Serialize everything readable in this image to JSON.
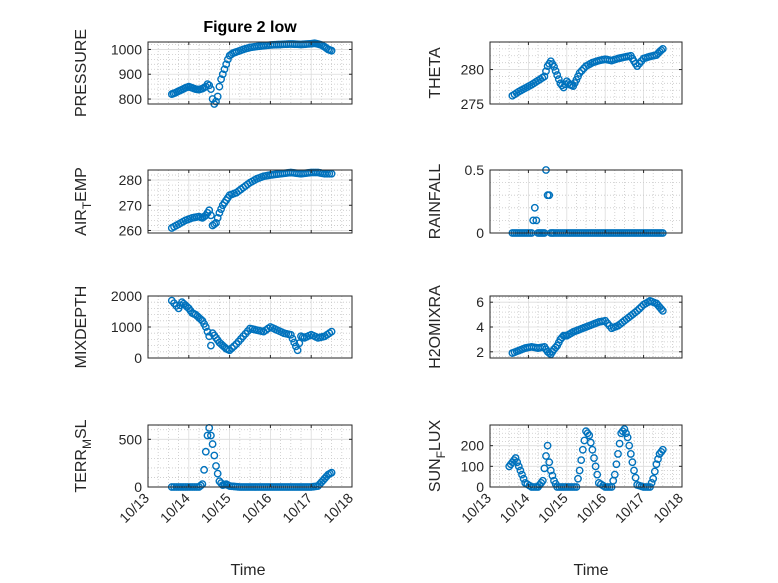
{
  "chart_data": [
    {
      "type": "scatter",
      "title": "Figure 2 low",
      "ylabel": "PRESSURE",
      "xlabel": "",
      "xlim": [
        "10/13",
        "10/18"
      ],
      "ylim": [
        780,
        1030
      ],
      "yticks": [
        800,
        900,
        1000
      ],
      "xticklabels": [],
      "grid": "on",
      "series": [
        {
          "x": [
            "10/13 14:00",
            "10/13 16:00",
            "10/13 18:00",
            "10/13 20:00",
            "10/13 22:00",
            "10/14 00:00",
            "10/14 02:00",
            "10/14 04:00",
            "10/14 06:00",
            "10/14 08:00",
            "10/14 10:00",
            "10/14 11:00",
            "10/14 12:00",
            "10/14 13:00",
            "10/14 14:00",
            "10/14 15:00",
            "10/14 16:00",
            "10/14 17:00",
            "10/14 18:00",
            "10/14 19:00",
            "10/14 20:00",
            "10/14 21:00",
            "10/14 22:00",
            "10/14 23:00",
            "10/15 00:00",
            "10/15 02:00",
            "10/15 04:00",
            "10/15 08:00",
            "10/15 12:00",
            "10/15 16:00",
            "10/15 20:00",
            "10/16 00:00",
            "10/16 06:00",
            "10/16 12:00",
            "10/16 18:00",
            "10/17 00:00",
            "10/17 02:00",
            "10/17 04:00",
            "10/17 06:00",
            "10/17 08:00",
            "10/17 10:00",
            "10/17 12:00"
          ],
          "values": [
            820,
            825,
            832,
            838,
            845,
            850,
            845,
            840,
            838,
            842,
            850,
            860,
            855,
            840,
            800,
            780,
            790,
            810,
            850,
            880,
            900,
            920,
            940,
            960,
            975,
            985,
            990,
            1000,
            1008,
            1012,
            1015,
            1018,
            1020,
            1022,
            1020,
            1023,
            1025,
            1022,
            1018,
            1010,
            1000,
            995
          ]
        }
      ]
    },
    {
      "type": "scatter",
      "title": "",
      "ylabel": "THETA",
      "xlabel": "",
      "xlim": [
        "10/13",
        "10/18"
      ],
      "ylim": [
        275,
        284
      ],
      "yticks": [
        275,
        280
      ],
      "xticklabels": [],
      "grid": "on",
      "series": [
        {
          "x": [
            "10/13 14:00",
            "10/13 18:00",
            "10/13 22:00",
            "10/14 02:00",
            "10/14 06:00",
            "10/14 10:00",
            "10/14 12:00",
            "10/14 14:00",
            "10/14 16:00",
            "10/14 18:00",
            "10/14 20:00",
            "10/14 22:00",
            "10/15 00:00",
            "10/15 02:00",
            "10/15 04:00",
            "10/15 06:00",
            "10/15 08:00",
            "10/15 12:00",
            "10/15 16:00",
            "10/15 20:00",
            "10/16 00:00",
            "10/16 04:00",
            "10/16 08:00",
            "10/16 12:00",
            "10/16 16:00",
            "10/16 18:00",
            "10/16 20:00",
            "10/17 00:00",
            "10/17 04:00",
            "10/17 08:00",
            "10/17 10:00",
            "10/17 12:00"
          ],
          "values": [
            276.2,
            276.8,
            277.3,
            277.8,
            278.4,
            279.0,
            280.5,
            281.2,
            280.4,
            279.2,
            278.0,
            277.4,
            278.3,
            277.8,
            277.6,
            278.5,
            279.5,
            280.5,
            281.0,
            281.3,
            281.5,
            281.3,
            281.6,
            281.8,
            282.0,
            281.2,
            280.5,
            281.6,
            281.9,
            282.1,
            282.6,
            283.0
          ]
        }
      ]
    },
    {
      "type": "scatter",
      "title": "",
      "ylabel": "AIR_TEMP",
      "xlabel": "",
      "xlim": [
        "10/13",
        "10/18"
      ],
      "ylim": [
        259,
        284
      ],
      "yticks": [
        260,
        270,
        280
      ],
      "xticklabels": [],
      "grid": "on",
      "series": [
        {
          "x": [
            "10/13 14:00",
            "10/13 18:00",
            "10/13 22:00",
            "10/14 02:00",
            "10/14 06:00",
            "10/14 08:00",
            "10/14 10:00",
            "10/14 12:00",
            "10/14 13:00",
            "10/14 14:00",
            "10/14 16:00",
            "10/14 18:00",
            "10/14 20:00",
            "10/14 22:00",
            "10/15 00:00",
            "10/15 04:00",
            "10/15 08:00",
            "10/15 12:00",
            "10/15 16:00",
            "10/15 20:00",
            "10/16 00:00",
            "10/16 06:00",
            "10/16 12:00",
            "10/16 18:00",
            "10/17 00:00",
            "10/17 04:00",
            "10/17 08:00",
            "10/17 12:00"
          ],
          "values": [
            261,
            262.5,
            264,
            265,
            265.5,
            265,
            266,
            268,
            266,
            262,
            263,
            267,
            270,
            272,
            274,
            275,
            277,
            279,
            280.5,
            281.5,
            282,
            282.5,
            283,
            282.5,
            283,
            283,
            282.5,
            282.5
          ]
        }
      ]
    },
    {
      "type": "scatter",
      "title": "",
      "ylabel": "RAINFALL",
      "xlabel": "",
      "xlim": [
        "10/13",
        "10/18"
      ],
      "ylim": [
        0,
        0.5
      ],
      "yticks": [
        0,
        0.5
      ],
      "xticklabels": [],
      "grid": "on",
      "series": [
        {
          "x": [
            "10/13 14:00",
            "10/13 20:00",
            "10/14 02:00",
            "10/14 04:00",
            "10/14 06:00",
            "10/14 08:00",
            "10/14 10:00",
            "10/14 11:00",
            "10/14 12:00",
            "10/14 13:00",
            "10/14 14:00",
            "10/14 16:00",
            "10/14 20:00",
            "10/15 00:00",
            "10/15 06:00",
            "10/15 12:00",
            "10/15 18:00",
            "10/16 00:00",
            "10/16 06:00",
            "10/16 12:00",
            "10/16 18:00",
            "10/17 00:00",
            "10/17 06:00",
            "10/17 12:00"
          ],
          "values": [
            0,
            0,
            0,
            0.2,
            0,
            0,
            0,
            0.5,
            0.3,
            0.3,
            0,
            0,
            0,
            0,
            0,
            0,
            0,
            0,
            0,
            0,
            0,
            0,
            0,
            0
          ]
        }
      ]
    },
    {
      "type": "scatter",
      "title": "",
      "ylabel": "MIXDEPTH",
      "xlabel": "",
      "xlim": [
        "10/13",
        "10/18"
      ],
      "ylim": [
        0,
        2000
      ],
      "yticks": [
        0,
        1000,
        2000
      ],
      "xticklabels": [],
      "grid": "on",
      "series": [
        {
          "x": [
            "10/13 14:00",
            "10/13 18:00",
            "10/13 20:00",
            "10/13 22:00",
            "10/14 00:00",
            "10/14 02:00",
            "10/14 04:00",
            "10/14 06:00",
            "10/14 08:00",
            "10/14 10:00",
            "10/14 12:00",
            "10/14 13:00",
            "10/14 14:00",
            "10/14 16:00",
            "10/14 18:00",
            "10/14 20:00",
            "10/14 22:00",
            "10/15 00:00",
            "10/15 04:00",
            "10/15 08:00",
            "10/15 12:00",
            "10/15 16:00",
            "10/15 20:00",
            "10/16 00:00",
            "10/16 04:00",
            "10/16 08:00",
            "10/16 12:00",
            "10/16 14:00",
            "10/16 16:00",
            "10/16 18:00",
            "10/16 20:00",
            "10/17 00:00",
            "10/17 04:00",
            "10/17 08:00",
            "10/17 12:00"
          ],
          "values": [
            1850,
            1600,
            1800,
            1700,
            1600,
            1450,
            1400,
            1300,
            1200,
            1000,
            700,
            400,
            800,
            650,
            500,
            400,
            300,
            250,
            450,
            700,
            950,
            900,
            850,
            1000,
            900,
            800,
            750,
            500,
            250,
            700,
            650,
            750,
            650,
            700,
            850
          ]
        }
      ]
    },
    {
      "type": "scatter",
      "title": "",
      "ylabel": "H2OMIXRA",
      "xlabel": "",
      "xlim": [
        "10/13",
        "10/18"
      ],
      "ylim": [
        1.5,
        6.5
      ],
      "yticks": [
        2,
        4,
        6
      ],
      "xticklabels": [],
      "grid": "on",
      "series": [
        {
          "x": [
            "10/13 14:00",
            "10/13 18:00",
            "10/13 22:00",
            "10/14 02:00",
            "10/14 06:00",
            "10/14 10:00",
            "10/14 12:00",
            "10/14 14:00",
            "10/14 16:00",
            "10/14 18:00",
            "10/14 20:00",
            "10/14 22:00",
            "10/15 00:00",
            "10/15 04:00",
            "10/15 08:00",
            "10/15 12:00",
            "10/15 16:00",
            "10/15 20:00",
            "10/16 00:00",
            "10/16 04:00",
            "10/16 08:00",
            "10/16 12:00",
            "10/16 16:00",
            "10/16 20:00",
            "10/17 00:00",
            "10/17 04:00",
            "10/17 08:00",
            "10/17 10:00",
            "10/17 12:00"
          ],
          "values": [
            1.9,
            2.1,
            2.3,
            2.4,
            2.3,
            2.4,
            2.0,
            1.8,
            2.2,
            2.5,
            3.0,
            3.3,
            3.3,
            3.6,
            3.8,
            4.0,
            4.2,
            4.4,
            4.5,
            3.9,
            4.1,
            4.5,
            4.9,
            5.3,
            5.8,
            6.1,
            5.9,
            5.6,
            5.3
          ]
        }
      ]
    },
    {
      "type": "scatter",
      "title": "",
      "ylabel": "TERR_MSL",
      "xlabel": "Time",
      "xlim": [
        "10/13",
        "10/18"
      ],
      "ylim": [
        0,
        650
      ],
      "yticks": [
        0,
        500
      ],
      "xticklabels": [
        "10/13",
        "10/14",
        "10/15",
        "10/16",
        "10/17",
        "10/18"
      ],
      "grid": "on",
      "series": [
        {
          "x": [
            "10/13 14:00",
            "10/13 18:00",
            "10/13 22:00",
            "10/14 02:00",
            "10/14 06:00",
            "10/14 08:00",
            "10/14 09:00",
            "10/14 10:00",
            "10/14 11:00",
            "10/14 12:00",
            "10/14 13:00",
            "10/14 14:00",
            "10/14 15:00",
            "10/14 16:00",
            "10/14 17:00",
            "10/14 18:00",
            "10/14 20:00",
            "10/14 22:00",
            "10/15 00:00",
            "10/15 06:00",
            "10/15 12:00",
            "10/15 18:00",
            "10/16 00:00",
            "10/16 06:00",
            "10/16 12:00",
            "10/16 18:00",
            "10/17 00:00",
            "10/17 04:00",
            "10/17 06:00",
            "10/17 08:00",
            "10/17 10:00",
            "10/17 12:00"
          ],
          "values": [
            0,
            0,
            0,
            0,
            0,
            30,
            180,
            370,
            540,
            620,
            540,
            450,
            330,
            220,
            140,
            60,
            20,
            30,
            10,
            0,
            0,
            0,
            0,
            0,
            0,
            0,
            0,
            10,
            50,
            90,
            130,
            150
          ]
        }
      ]
    },
    {
      "type": "scatter",
      "title": "",
      "ylabel": "SUN_FLUX",
      "xlabel": "Time",
      "xlim": [
        "10/13",
        "10/18"
      ],
      "ylim": [
        0,
        300
      ],
      "yticks": [
        0,
        100,
        200
      ],
      "xticklabels": [
        "10/13",
        "10/14",
        "10/15",
        "10/16",
        "10/17",
        "10/18"
      ],
      "grid": "on",
      "series": [
        {
          "x": [
            "10/13 12:00",
            "10/13 14:00",
            "10/13 16:00",
            "10/13 18:00",
            "10/13 20:00",
            "10/13 22:00",
            "10/14 02:00",
            "10/14 06:00",
            "10/14 09:00",
            "10/14 11:00",
            "10/14 12:00",
            "10/14 13:00",
            "10/14 14:00",
            "10/14 16:00",
            "10/14 18:00",
            "10/14 22:00",
            "10/15 02:00",
            "10/15 06:00",
            "10/15 08:00",
            "10/15 10:00",
            "10/15 12:00",
            "10/15 14:00",
            "10/15 16:00",
            "10/15 18:00",
            "10/15 20:00",
            "10/16 00:00",
            "10/16 04:00",
            "10/16 06:00",
            "10/16 08:00",
            "10/16 10:00",
            "10/16 12:00",
            "10/16 14:00",
            "10/16 16:00",
            "10/16 18:00",
            "10/16 20:00",
            "10/17 00:00",
            "10/17 04:00",
            "10/17 06:00",
            "10/17 08:00",
            "10/17 10:00",
            "10/17 12:00"
          ],
          "values": [
            100,
            120,
            140,
            100,
            60,
            20,
            0,
            0,
            30,
            150,
            200,
            120,
            80,
            30,
            0,
            0,
            0,
            0,
            80,
            180,
            270,
            250,
            180,
            100,
            20,
            0,
            0,
            60,
            160,
            260,
            280,
            240,
            160,
            80,
            10,
            0,
            0,
            40,
            110,
            160,
            180
          ]
        }
      ]
    }
  ]
}
